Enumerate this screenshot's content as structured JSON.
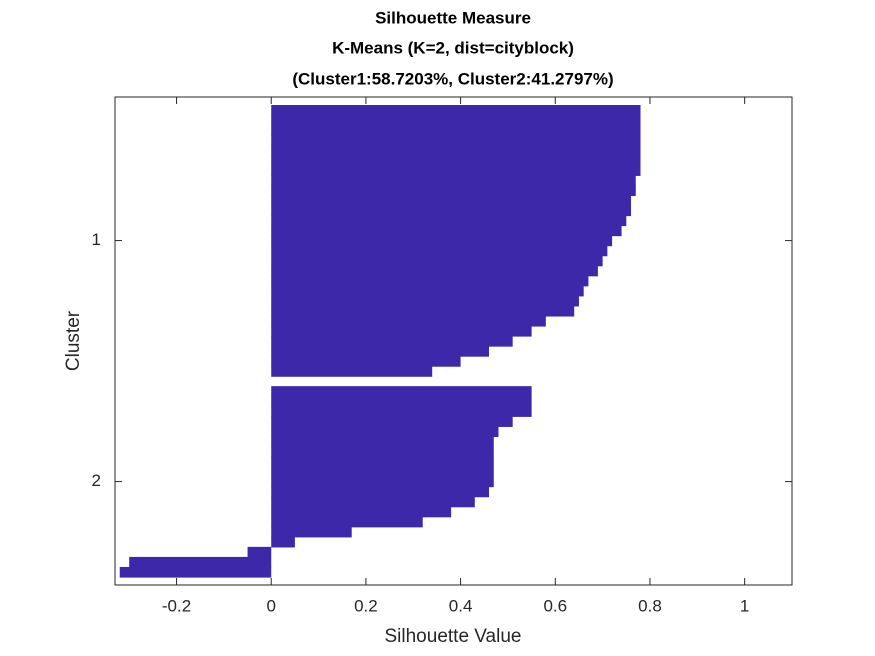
{
  "chart_data": {
    "type": "silhouette",
    "title": "Silhouette Measure",
    "subtitle": "K-Means (K=2, dist=cityblock)",
    "annotation": "(Cluster1:58.7203%, Cluster2:41.2797%)",
    "x_label": "Silhouette Value",
    "y_label": "Cluster",
    "categories": [
      "1",
      "2"
    ],
    "values": [
      [
        0.78,
        0.78,
        0.78,
        0.78,
        0.78,
        0.78,
        0.78,
        0.77,
        0.77,
        0.76,
        0.76,
        0.75,
        0.74,
        0.72,
        0.71,
        0.7,
        0.69,
        0.67,
        0.66,
        0.65,
        0.64,
        0.58,
        0.55,
        0.51,
        0.46,
        0.4,
        0.34
      ],
      [
        0.55,
        0.55,
        0.55,
        0.51,
        0.48,
        0.47,
        0.47,
        0.47,
        0.47,
        0.47,
        0.46,
        0.43,
        0.38,
        0.32,
        0.17,
        0.05,
        -0.05,
        -0.3,
        -0.32
      ]
    ],
    "color": "#3c28a8",
    "xlim": [
      -0.33,
      1.1
    ],
    "xticks": [
      -0.2,
      0,
      0.2,
      0.4,
      0.6,
      0.8,
      1
    ]
  }
}
